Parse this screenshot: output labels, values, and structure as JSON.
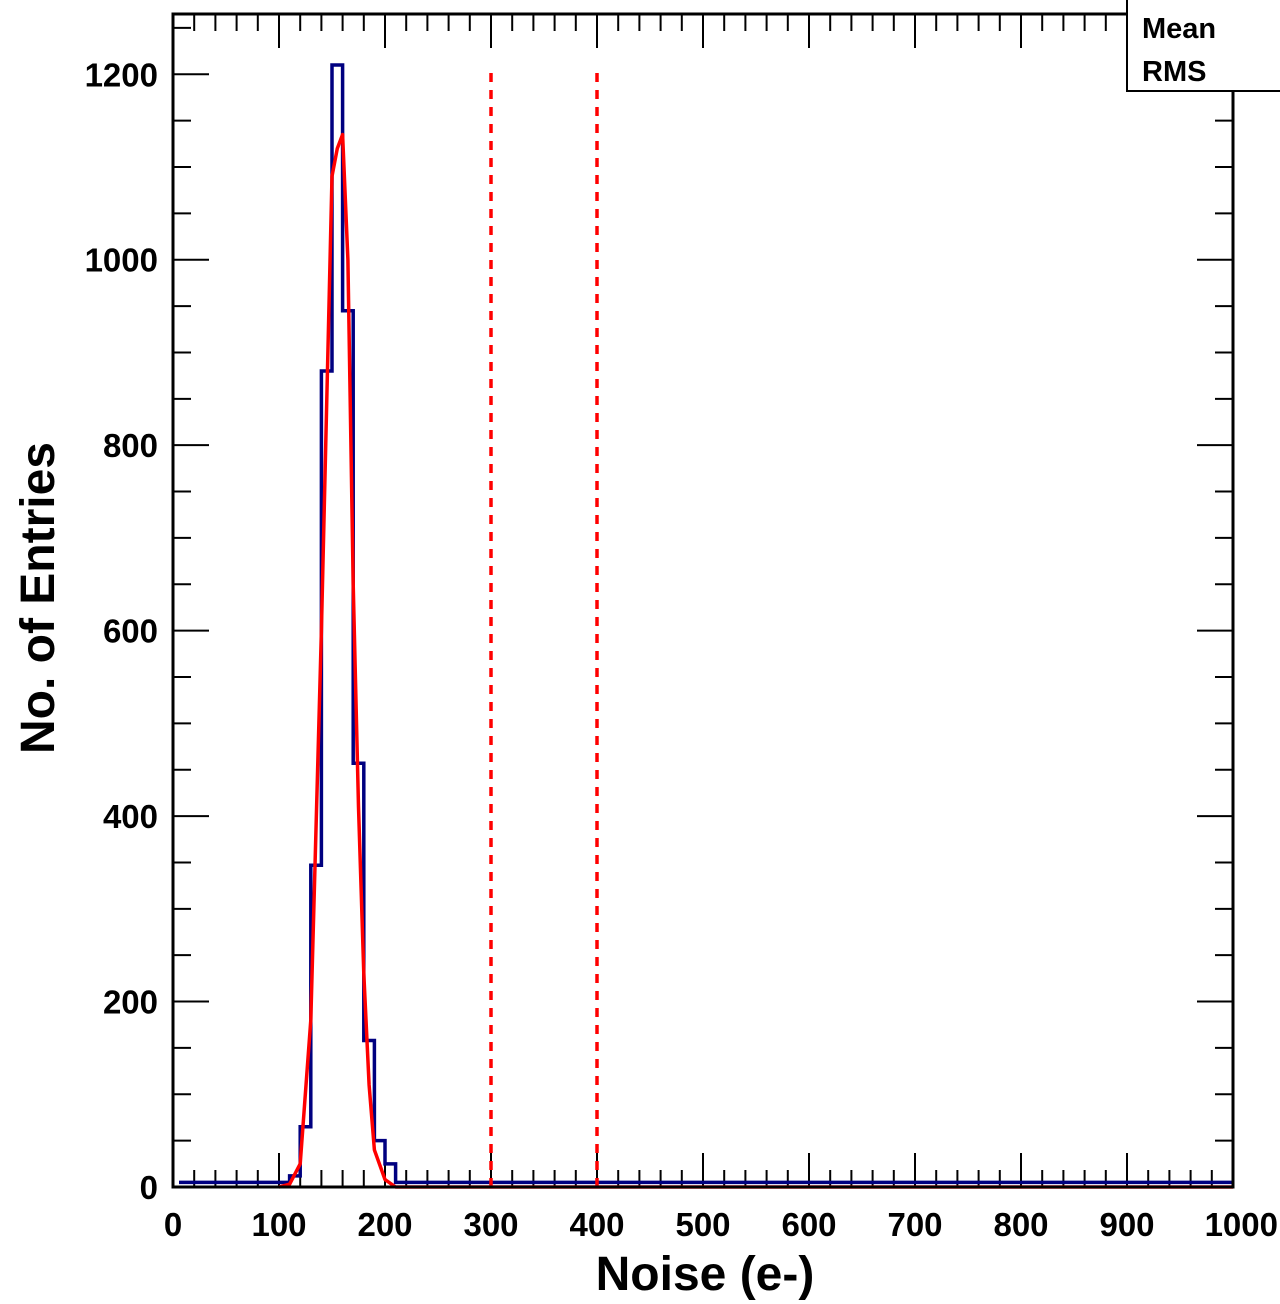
{
  "chart_data": {
    "type": "histogram",
    "title": "",
    "xlabel": "Noise (e-)",
    "ylabel": "No. of Entries",
    "xlim": [
      0,
      1000
    ],
    "ylim": [
      0,
      1265
    ],
    "xticks": [
      0,
      100,
      200,
      300,
      400,
      500,
      600,
      700,
      800,
      900,
      1000
    ],
    "yticks": [
      0,
      200,
      400,
      600,
      800,
      1000,
      1200
    ],
    "grid": false,
    "bin_width": 10,
    "histogram": {
      "color": "#000080",
      "bins": [
        {
          "x0": 0,
          "x1": 110,
          "count": 5
        },
        {
          "x0": 110,
          "x1": 120,
          "count": 12
        },
        {
          "x0": 120,
          "x1": 130,
          "count": 65
        },
        {
          "x0": 130,
          "x1": 140,
          "count": 347
        },
        {
          "x0": 140,
          "x1": 150,
          "count": 880
        },
        {
          "x0": 150,
          "x1": 160,
          "count": 1210
        },
        {
          "x0": 160,
          "x1": 170,
          "count": 945
        },
        {
          "x0": 170,
          "x1": 180,
          "count": 457
        },
        {
          "x0": 180,
          "x1": 190,
          "count": 158
        },
        {
          "x0": 190,
          "x1": 200,
          "count": 50
        },
        {
          "x0": 200,
          "x1": 210,
          "count": 25
        },
        {
          "x0": 210,
          "x1": 1000,
          "count": 5
        }
      ]
    },
    "fit": {
      "color": "#ff0000",
      "points": [
        [
          100,
          0
        ],
        [
          110,
          3
        ],
        [
          120,
          25
        ],
        [
          130,
          180
        ],
        [
          140,
          600
        ],
        [
          150,
          1090
        ],
        [
          155,
          1120
        ],
        [
          160,
          1135
        ],
        [
          165,
          1000
        ],
        [
          170,
          650
        ],
        [
          175,
          410
        ],
        [
          180,
          230
        ],
        [
          185,
          110
        ],
        [
          190,
          40
        ],
        [
          200,
          8
        ],
        [
          210,
          0
        ],
        [
          1000,
          0
        ]
      ]
    },
    "cut_lines": {
      "color": "#ff0000",
      "style": "dashed",
      "x": [
        300,
        400
      ],
      "top": 1210
    },
    "stats_box": {
      "labels": [
        "Mean",
        "RMS"
      ],
      "placement": "top-right"
    }
  }
}
